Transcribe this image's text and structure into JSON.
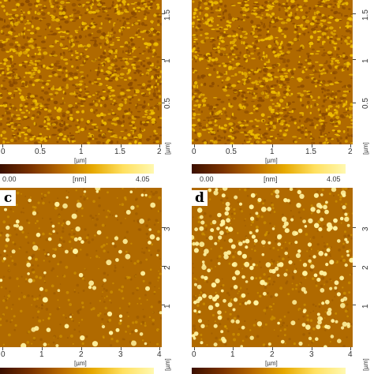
{
  "panels": {
    "a": {
      "x_ticks": [
        "0",
        "0.5",
        "1",
        "1.5",
        "2"
      ],
      "y_ticks": [
        "0.5",
        "1",
        "1.5"
      ],
      "unit_label": "[µm]",
      "colorbar": {
        "min": "0.00",
        "unit": "[nm]",
        "max": "4.05"
      }
    },
    "b": {
      "x_ticks": [
        "0",
        "0.5",
        "1",
        "1.5",
        "2"
      ],
      "y_ticks": [
        "0.5",
        "1",
        "1.5"
      ],
      "unit_label": "[µm]",
      "colorbar": {
        "min": "0.00",
        "unit": "[nm]",
        "max": "4.05"
      }
    },
    "c": {
      "letter": "c",
      "x_ticks": [
        "0",
        "1",
        "2",
        "3",
        "4"
      ],
      "y_ticks": [
        "1",
        "2",
        "3"
      ],
      "unit_label": "[µm]"
    },
    "d": {
      "letter": "d",
      "x_ticks": [
        "0",
        "1",
        "2",
        "3",
        "4"
      ],
      "y_ticks": [
        "1",
        "2",
        "3"
      ],
      "unit_label": "[µm]"
    }
  },
  "colors": {
    "substrate_dark": "#8a4a00",
    "substrate_mid": "#b06a00",
    "grain_light": "#f0c000",
    "particle_bright": "#fff3a0"
  }
}
